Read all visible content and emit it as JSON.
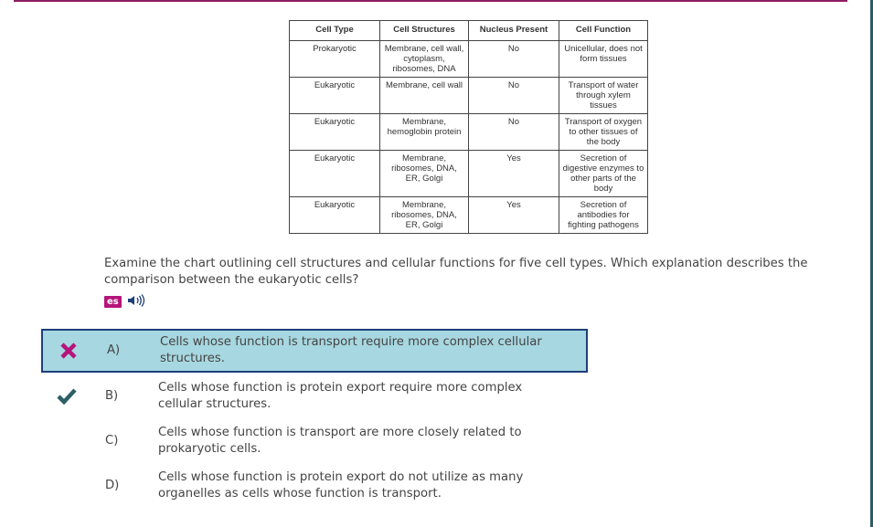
{
  "table": {
    "headers": [
      "Cell Type",
      "Cell Structures",
      "Nucleus Present",
      "Cell Function"
    ],
    "rows": [
      [
        "Prokaryotic",
        "Membrane, cell wall, cytoplasm, ribosomes, DNA",
        "No",
        "Unicellular, does not form tissues"
      ],
      [
        "Eukaryotic",
        "Membrane, cell wall",
        "No",
        "Transport of water through xylem tissues"
      ],
      [
        "Eukaryotic",
        "Membrane, hemoglobin protein",
        "No",
        "Transport of oxygen to other tissues of the body"
      ],
      [
        "Eukaryotic",
        "Membrane, ribosomes, DNA, ER, Golgi",
        "Yes",
        "Secretion of digestive enzymes to other parts of the body"
      ],
      [
        "Eukaryotic",
        "Membrane, ribosomes, DNA, ER, Golgi",
        "Yes",
        "Secretion of antibodies for fighting pathogens"
      ]
    ]
  },
  "question": "Examine the chart outlining cell structures and cellular functions for five cell types. Which explanation describes the comparison between the eukaryotic cells?",
  "tools": {
    "spanish_label": "es",
    "audio_icon": "speaker-icon"
  },
  "choices": [
    {
      "letter": "A)",
      "text": "Cells whose function is transport require more complex cellular structures.",
      "selected": true,
      "mark": "incorrect"
    },
    {
      "letter": "B)",
      "text": "Cells whose function is protein export require more complex cellular structures.",
      "selected": false,
      "mark": "correct"
    },
    {
      "letter": "C)",
      "text": "Cells whose function is transport are more closely related to prokaryotic cells.",
      "selected": false,
      "mark": ""
    },
    {
      "letter": "D)",
      "text": "Cells whose function is protein export do not utilize as many organelles as cells whose function is transport.",
      "selected": false,
      "mark": ""
    }
  ],
  "colors": {
    "incorrect": "#b5157b",
    "correct": "#2d5f66",
    "selected_bg": "#a7d7e0",
    "selected_border": "#1e3f7a"
  }
}
